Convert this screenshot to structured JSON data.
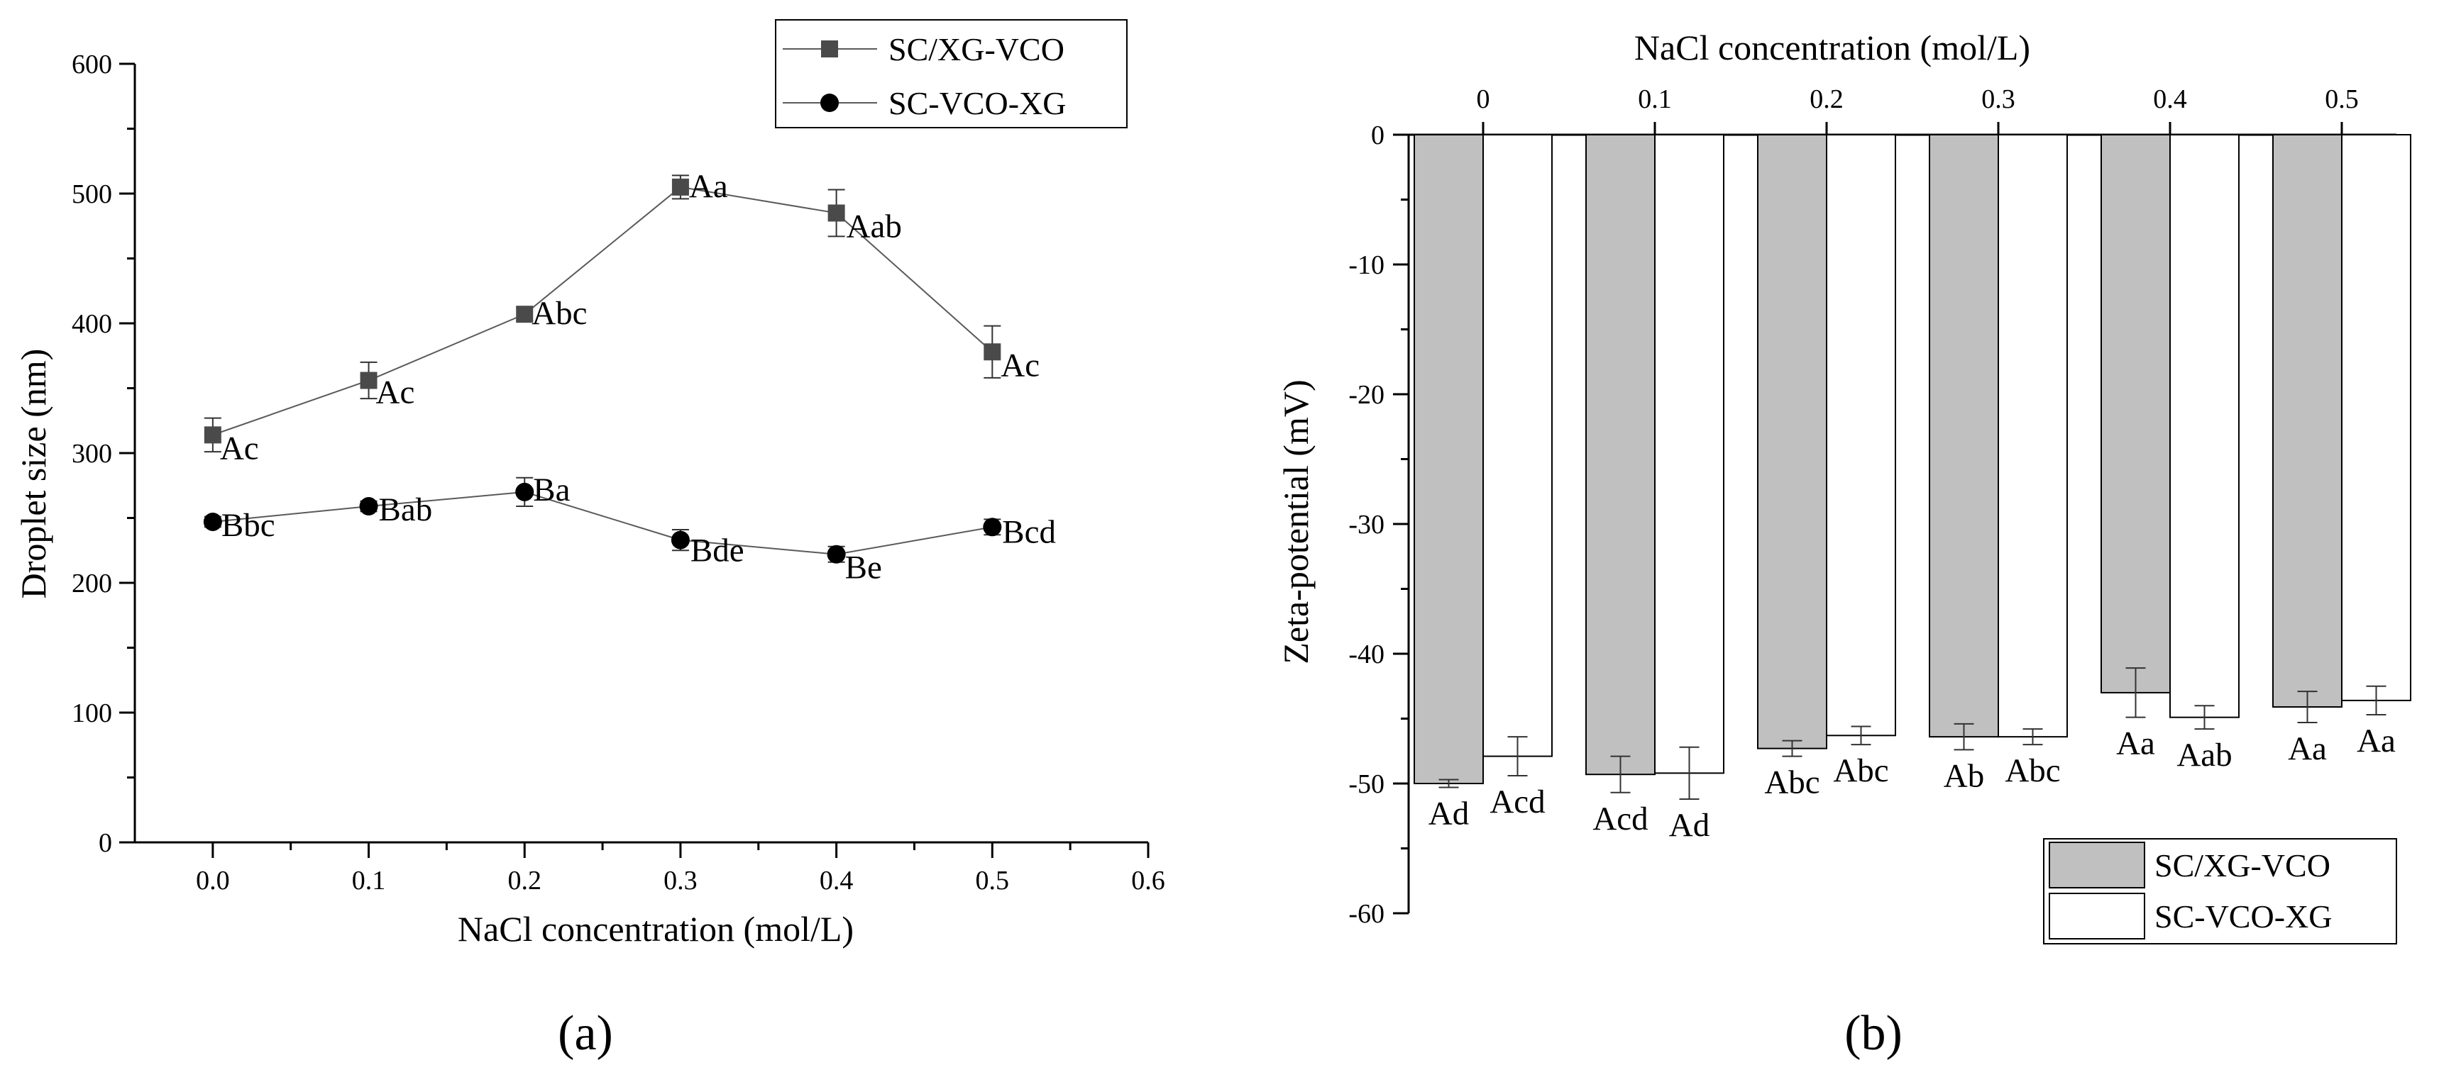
{
  "chart_data": [
    {
      "type": "line",
      "panel_label": "(a)",
      "xlabel": "NaCl concentration (mol/L)",
      "ylabel": "Droplet size (nm)",
      "xlim": [
        -0.05,
        0.6
      ],
      "ylim": [
        0,
        600
      ],
      "xticks": [
        "0.0",
        "0.1",
        "0.2",
        "0.3",
        "0.4",
        "0.5",
        "0.6"
      ],
      "yticks": [
        "0",
        "100",
        "200",
        "300",
        "400",
        "500",
        "600"
      ],
      "legend_position": "top-right",
      "series": [
        {
          "name": "SC/XG-VCO",
          "marker": "square",
          "color": "#4a4a4a",
          "x": [
            0.0,
            0.1,
            0.2,
            0.3,
            0.4,
            0.5
          ],
          "y": [
            314,
            356,
            407,
            505,
            485,
            378
          ],
          "error": [
            13,
            14,
            5,
            9,
            18,
            20
          ],
          "labels": [
            "Ac",
            "Ac",
            "Abc",
            "Aa",
            "Aab",
            "Ac"
          ]
        },
        {
          "name": "SC-VCO-XG",
          "marker": "circle",
          "color": "#000000",
          "x": [
            0.0,
            0.1,
            0.2,
            0.3,
            0.4,
            0.5
          ],
          "y": [
            247,
            259,
            270,
            233,
            222,
            243
          ],
          "error": [
            4,
            4,
            11,
            8,
            6,
            6
          ],
          "labels": [
            "Bbc",
            "Bab",
            "Ba",
            "Bde",
            "Be",
            "Bcd"
          ]
        }
      ]
    },
    {
      "type": "bar",
      "panel_label": "(b)",
      "xlabel": "NaCl concentration (mol/L)",
      "ylabel": "Zeta-potential (mV)",
      "categories": [
        "0",
        "0.1",
        "0.2",
        "0.3",
        "0.4",
        "0.5"
      ],
      "ylim": [
        -60,
        0
      ],
      "yticks": [
        "0",
        "-10",
        "-20",
        "-30",
        "-40",
        "-50",
        "-60"
      ],
      "legend_position": "bottom-right",
      "series": [
        {
          "name": "SC/XG-VCO",
          "color": "#c0c0c0",
          "values": [
            -50.0,
            -49.3,
            -47.3,
            -46.4,
            -43.0,
            -44.1
          ],
          "error": [
            0.3,
            1.4,
            0.6,
            1.0,
            1.9,
            1.2
          ],
          "labels": [
            "Ad",
            "Acd",
            "Abc",
            "Ab",
            "Aa",
            "Aa"
          ]
        },
        {
          "name": "SC-VCO-XG",
          "color": "#ffffff",
          "values": [
            -47.9,
            -49.2,
            -46.3,
            -46.4,
            -44.9,
            -43.6
          ],
          "error": [
            1.5,
            2.0,
            0.7,
            0.6,
            0.9,
            1.1
          ],
          "labels": [
            "Acd",
            "Ad",
            "Abc",
            "Abc",
            "Aab",
            "Aa"
          ]
        }
      ]
    }
  ]
}
